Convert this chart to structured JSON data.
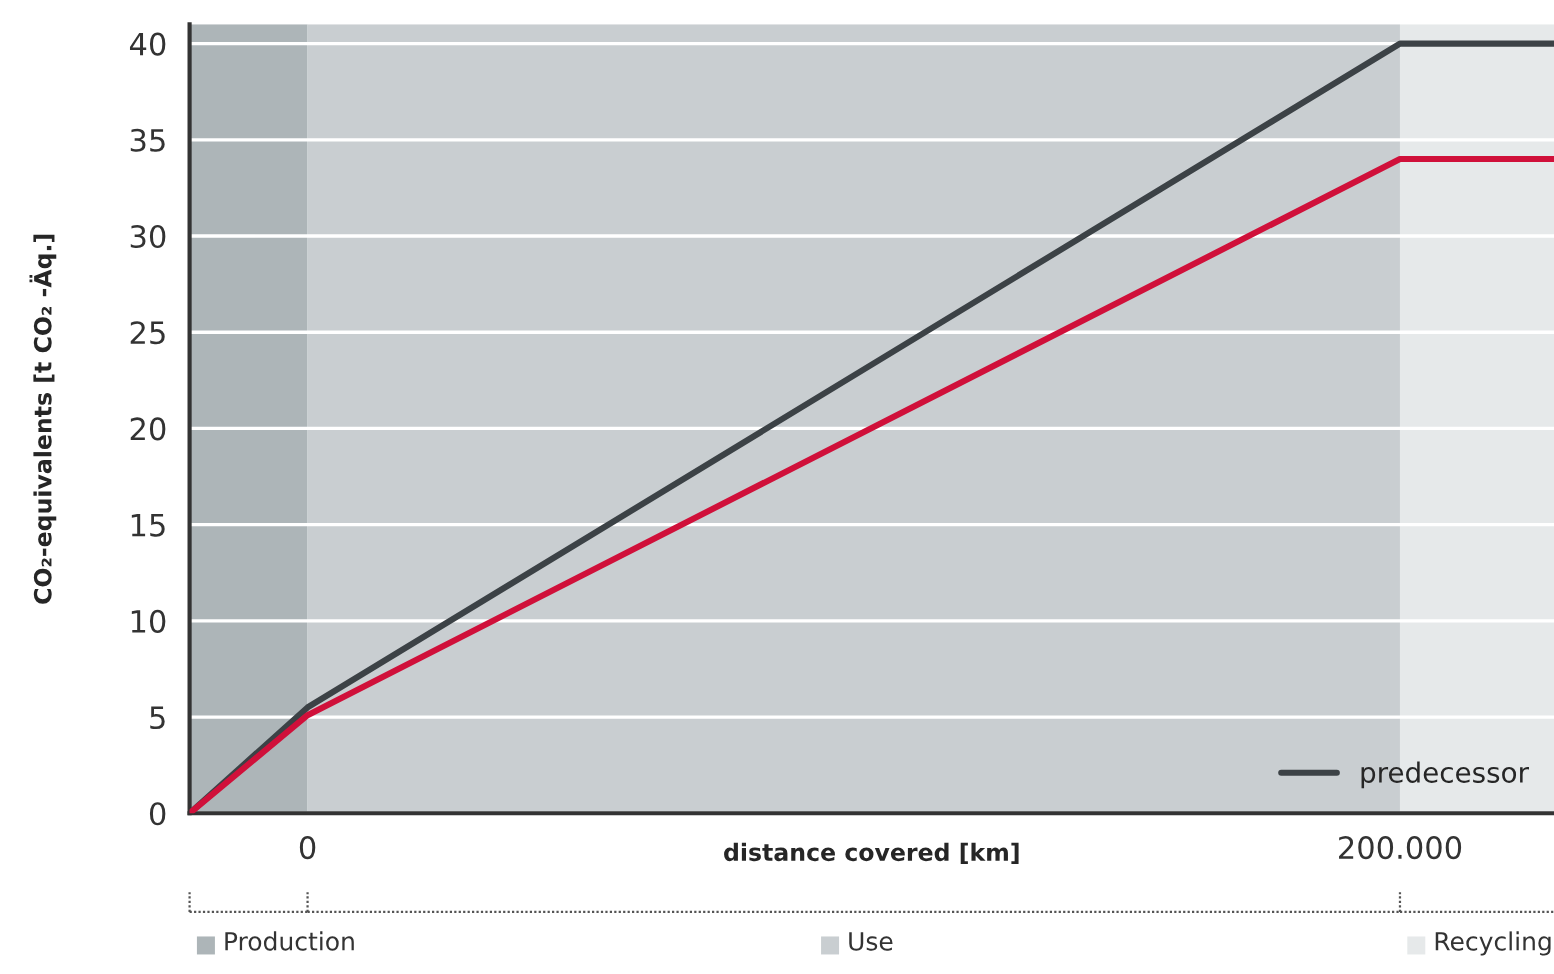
{
  "chart_data": {
    "type": "line",
    "xlabel": "distance covered [km]",
    "ylabel": "CO₂-equivalents [t CO₂ -Äq.]",
    "x": [
      -21600,
      0,
      200000,
      228200
    ],
    "series": [
      {
        "name": "predecessor",
        "color": "#3c4246",
        "values": [
          0,
          5.5,
          40,
          40
        ]
      },
      {
        "color": "#d0103a",
        "values": [
          0,
          5.1,
          34,
          34
        ]
      }
    ],
    "xlim": [
      -21600,
      228200
    ],
    "xticks": [
      0,
      {
        "value": 200000,
        "label": "200.000"
      }
    ],
    "ylim": [
      0,
      41
    ],
    "yticks": [
      0,
      5,
      10,
      15,
      20,
      25,
      30,
      35,
      40
    ],
    "bands": [
      {
        "axis": "x",
        "from": -21600,
        "to": 0,
        "label": "Production",
        "color": "#adb5b8"
      },
      {
        "axis": "x",
        "from": 0,
        "to": 200000,
        "label": "Use",
        "color": "#c9ced1"
      },
      {
        "axis": "x",
        "from": 200000,
        "to": 228200,
        "label": "Recycling",
        "color": "#e6e9ea"
      }
    ],
    "grid": "y",
    "legend": "bottom right",
    "line_style": "solid",
    "marker": "none"
  }
}
